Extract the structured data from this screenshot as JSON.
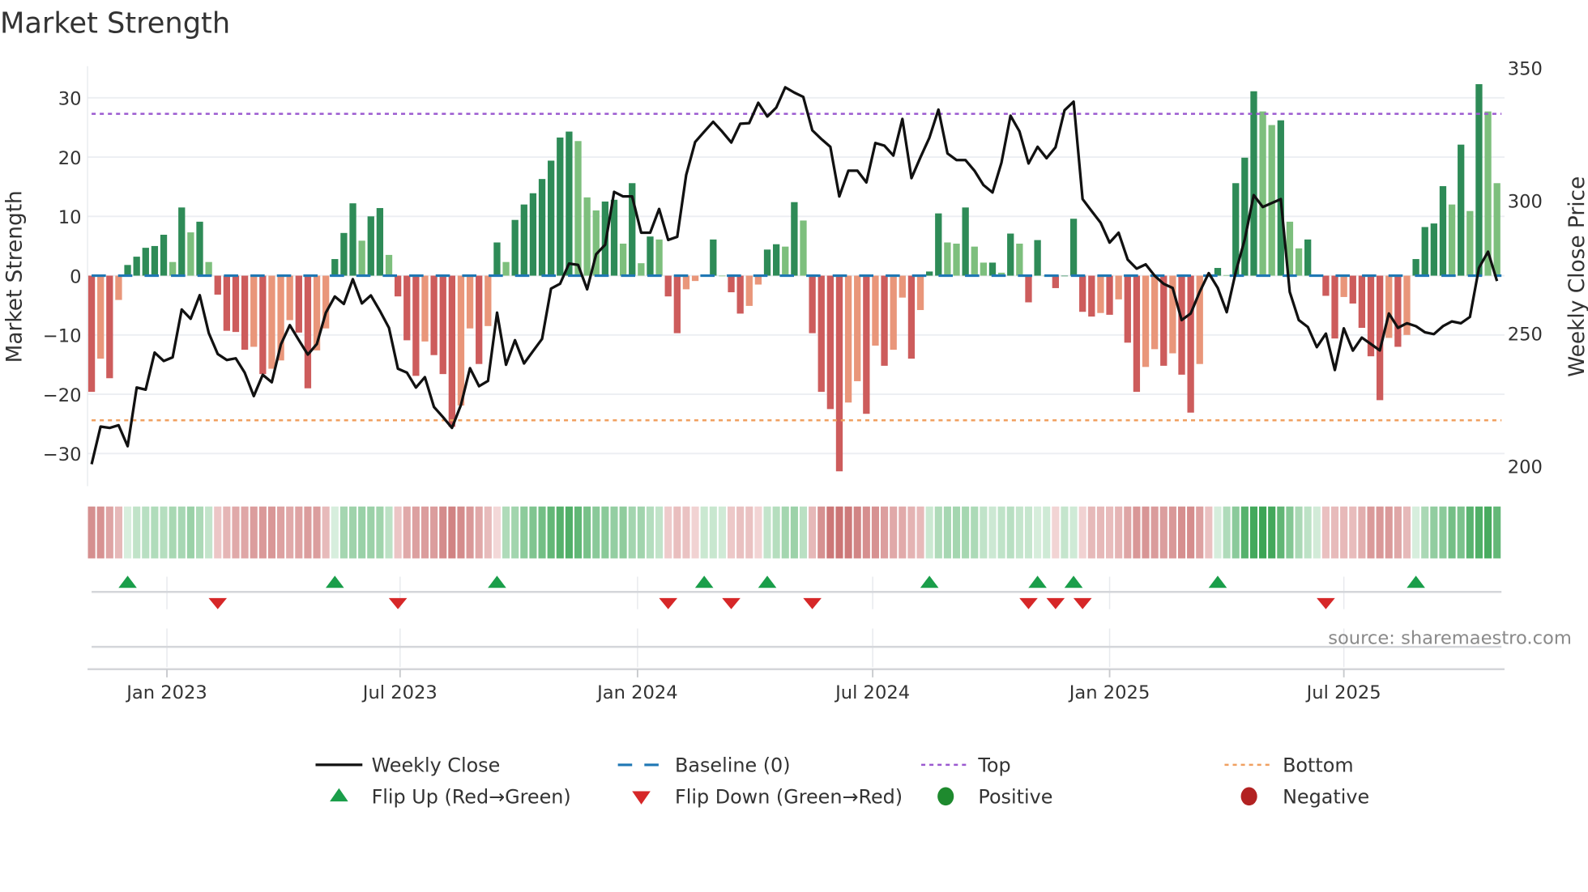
{
  "chart_data": {
    "type": "bar",
    "title": "Market Strength",
    "ylabel": "Market Strength",
    "y2label": "Weekly Close Price",
    "source": "source: sharemaestro.com",
    "ylim": [
      -35.5,
      35.5
    ],
    "y2lim": [
      192,
      353
    ],
    "yticks": [
      {
        "v": 30,
        "label": "30"
      },
      {
        "v": 20,
        "label": "20"
      },
      {
        "v": 10,
        "label": "10"
      },
      {
        "v": 0,
        "label": "0"
      },
      {
        "v": -10,
        "label": "−10"
      },
      {
        "v": -20,
        "label": "−20"
      },
      {
        "v": -30,
        "label": "−30"
      }
    ],
    "y2ticks": [
      {
        "v": 350,
        "label": "350"
      },
      {
        "v": 300,
        "label": "300"
      },
      {
        "v": 250,
        "label": "250"
      },
      {
        "v": 200,
        "label": "200"
      }
    ],
    "xticks": [
      {
        "week": 8.36,
        "label": "Jan 2023"
      },
      {
        "week": 34.24,
        "label": "Jul 2023"
      },
      {
        "week": 60.6,
        "label": "Jan 2024"
      },
      {
        "week": 86.7,
        "label": "Jul 2024"
      },
      {
        "week": 113.0,
        "label": "Jan 2025"
      },
      {
        "week": 139.0,
        "label": "Jul 2025"
      }
    ],
    "top_level": 27.3,
    "bottom_level": -24.4,
    "baseline": 0,
    "grid": true,
    "legend_placement": "bottom-center",
    "colors": {
      "positive_rising": "#2e8b57",
      "positive_falling": "#7dbf7d",
      "negative_falling": "#cd5c5c",
      "negative_rising": "#e9967a",
      "baseline": "#1f77b4",
      "top": "#9b59d0",
      "bottom": "#f0a060",
      "close": "#111111",
      "flip_up": "#1a9e4a",
      "flip_down": "#d62728",
      "positive": "#1e8a2e",
      "negative": "#b22222"
    },
    "strength": [
      -19.6,
      -14,
      -17.3,
      -4.1,
      1.8,
      3.2,
      4.7,
      5.0,
      6.9,
      2.3,
      11.5,
      7.3,
      9.1,
      2.3,
      -3.2,
      -9.3,
      -9.5,
      -12.5,
      -12,
      -16.6,
      -15.7,
      -14.3,
      -7.5,
      -9.6,
      -19,
      -12.6,
      -8.9,
      2.8,
      7.2,
      12.2,
      5.9,
      10,
      11.4,
      3.5,
      -3.5,
      -10.9,
      -16.9,
      -11.1,
      -13.4,
      -16.6,
      -25.5,
      -21.9,
      -8.9,
      -14.9,
      -8.5,
      5.6,
      2.3,
      9.4,
      12,
      13.9,
      16.3,
      19.4,
      23.3,
      24.3,
      22.7,
      13.2,
      11,
      12.5,
      12.8,
      5.4,
      15.6,
      2.1,
      6.6,
      6.1,
      -3.5,
      -9.7,
      -2.3,
      -0.9,
      0.2,
      6.1,
      0,
      -2.8,
      -6.4,
      -5.1,
      -1.5,
      4.4,
      5.3,
      4.9,
      12.4,
      9.3,
      -9.7,
      -19.6,
      -22.5,
      -33,
      -21.4,
      -17.8,
      -23.3,
      -11.8,
      -15.2,
      -12.5,
      -3.7,
      -14,
      -5.8,
      0.7,
      10.5,
      5.6,
      5.4,
      11.5,
      4.9,
      2.2,
      2.2,
      0.5,
      7.1,
      5.4,
      -4.5,
      6,
      0,
      -2.1,
      0,
      9.6,
      -6.1,
      -6.9,
      -6.3,
      -6.6,
      -4,
      -11.3,
      -19.6,
      -15.4,
      -12.4,
      -15.2,
      -13.1,
      -16.7,
      -23.1,
      -14.9,
      0,
      1.3,
      0.1,
      15.6,
      19.9,
      31.1,
      27.7,
      25.4,
      26.2,
      9.1,
      4.6,
      6.1,
      0,
      -3.4,
      -10.6,
      -3.6,
      -4.7,
      -8.8,
      -13.6,
      -21,
      -10.5,
      -12,
      -10,
      2.8,
      8.2,
      8.8,
      15.1,
      12,
      22.1,
      10.9,
      32.3,
      27.7,
      15.6
    ],
    "close": [
      200.6,
      214.8,
      214.3,
      215.3,
      207.4,
      229.5,
      228.7,
      242.7,
      239.5,
      240.9,
      258.9,
      255.4,
      264.3,
      250,
      242.1,
      239.9,
      240.5,
      235.1,
      226.3,
      234.3,
      231.5,
      245.7,
      253,
      247.4,
      241.9,
      245.9,
      257.7,
      263.8,
      261,
      270.3,
      261.2,
      264.2,
      258.4,
      252,
      236.6,
      235.1,
      229.5,
      233.4,
      222.2,
      218.4,
      214.3,
      222.9,
      236.8,
      230,
      232,
      257.7,
      238.1,
      247.3,
      238.6,
      243.2,
      247.8,
      266.8,
      268.6,
      276.2,
      275.7,
      266.5,
      279.7,
      283.3,
      303.2,
      301.5,
      301.5,
      287.8,
      287.8,
      296.8,
      285.1,
      286.3,
      309.6,
      322,
      325.9,
      329.6,
      325.9,
      321.8,
      328.9,
      329.1,
      336.8,
      331.6,
      335,
      342.6,
      340.6,
      339,
      326.4,
      323.1,
      320.2,
      301.5,
      311.2,
      311.2,
      306.8,
      321.6,
      320.6,
      316.9,
      330.7,
      308.4,
      316.2,
      323.6,
      334.2,
      317.7,
      315.2,
      315.2,
      311.2,
      305.8,
      303,
      314.2,
      331.9,
      326,
      313.9,
      320.2,
      315.9,
      320,
      334,
      337.2,
      300.5,
      296,
      291.6,
      284.1,
      287.8,
      277.7,
      274.3,
      275.9,
      271.6,
      268.6,
      267,
      254.9,
      257.4,
      265.5,
      272.6,
      267,
      257.9,
      273.1,
      285.3,
      302,
      297.5,
      299,
      300.5,
      265.5,
      254.9,
      252.3,
      244.7,
      249.8,
      236.1,
      251.8,
      243.4,
      248.3,
      245.9,
      243.5,
      257.4,
      252,
      253.7,
      252.6,
      250.3,
      249.6,
      252.6,
      254.4,
      253.7,
      256.1,
      274.6,
      280.7,
      269.6
    ]
  },
  "legend": {
    "weekly_close": "Weekly Close",
    "baseline": "Baseline (0)",
    "top": "Top",
    "bottom": "Bottom",
    "flip_up": "Flip Up (Red→Green)",
    "flip_down": "Flip Down (Green→Red)",
    "positive": "Positive",
    "negative": "Negative"
  }
}
